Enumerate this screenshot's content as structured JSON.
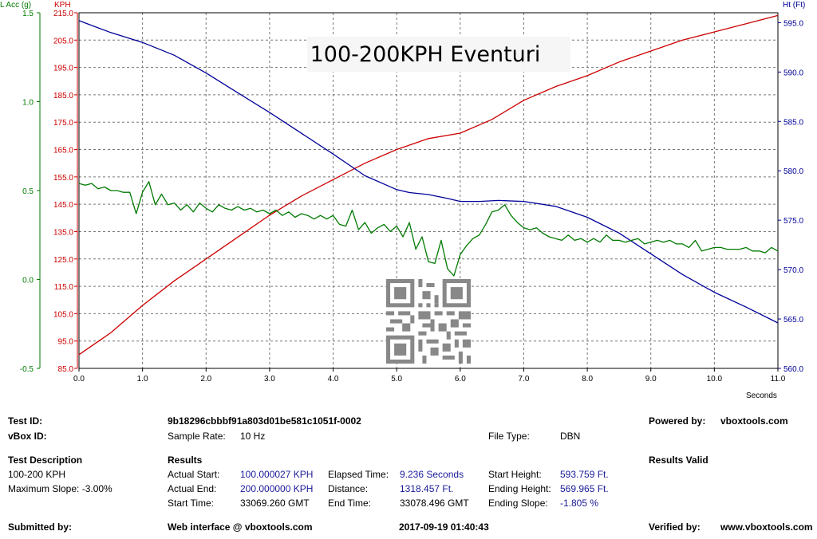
{
  "chart_data": {
    "type": "line",
    "title": "100-200KPH Eventuri",
    "x_unit": "Seconds",
    "xlim": [
      0,
      11
    ],
    "x_ticks": [
      "0.0",
      "1.0",
      "2.0",
      "3.0",
      "4.0",
      "5.0",
      "6.0",
      "7.0",
      "8.0",
      "9.0",
      "10.0",
      "11.0"
    ],
    "axes": {
      "lacc": {
        "label": "L Acc (g)",
        "lim": [
          -0.5,
          1.5
        ],
        "ticks": [
          "1.5",
          "1.0",
          "0.5",
          "0.0",
          "-0.5"
        ],
        "color": "#007a00"
      },
      "kph": {
        "label": "KPH",
        "lim": [
          85,
          215
        ],
        "ticks": [
          "215.0",
          "205.0",
          "195.0",
          "185.0",
          "175.0",
          "165.0",
          "155.0",
          "145.0",
          "135.0",
          "125.0",
          "115.0",
          "105.0",
          "95.0",
          "85.0"
        ],
        "color": "#cc0000"
      },
      "ht": {
        "label": "Ht (Ft)",
        "lim": [
          560,
          596
        ],
        "ticks": [
          "595.0",
          "590.0",
          "585.0",
          "580.0",
          "575.0",
          "570.0",
          "565.0",
          "560.0"
        ],
        "color": "#000099"
      }
    },
    "grid": true,
    "series": [
      {
        "name": "KPH",
        "axis": "kph",
        "color": "#cc0000",
        "x": [
          0,
          0.5,
          0.8,
          1.0,
          1.5,
          2.0,
          2.5,
          3.0,
          3.5,
          4.0,
          4.5,
          5.0,
          5.5,
          6.0,
          6.5,
          7.0,
          7.5,
          8.0,
          8.5,
          9.0,
          9.5,
          10.0,
          10.5,
          11.0
        ],
        "y": [
          90,
          98,
          104,
          108,
          117,
          125,
          133,
          141,
          148,
          154,
          160,
          165,
          169,
          171,
          176,
          183,
          188,
          192,
          197,
          201,
          205,
          208,
          211,
          214
        ]
      },
      {
        "name": "Ht (Ft)",
        "axis": "ht",
        "color": "#000099",
        "x": [
          0,
          0.5,
          1.0,
          1.5,
          2.0,
          2.5,
          3.0,
          3.5,
          4.0,
          4.5,
          5.0,
          5.2,
          5.5,
          5.8,
          6.0,
          6.3,
          6.6,
          7.0,
          7.5,
          8.0,
          8.5,
          9.0,
          9.5,
          10.0,
          10.5,
          11.0
        ],
        "y": [
          595.2,
          594.0,
          593.0,
          591.7,
          589.9,
          587.9,
          585.9,
          583.8,
          581.7,
          579.5,
          578.1,
          577.8,
          577.6,
          577.2,
          576.9,
          576.9,
          577.0,
          576.9,
          576.4,
          575.3,
          573.7,
          571.6,
          569.5,
          567.7,
          566.2,
          564.6
        ]
      },
      {
        "name": "L Acc (g)",
        "axis": "lacc",
        "color": "#007a00",
        "x": [
          0,
          0.1,
          0.2,
          0.3,
          0.4,
          0.5,
          0.6,
          0.7,
          0.8,
          0.9,
          1.0,
          1.1,
          1.2,
          1.3,
          1.4,
          1.5,
          1.6,
          1.7,
          1.8,
          1.9,
          2.0,
          2.1,
          2.2,
          2.3,
          2.4,
          2.5,
          2.6,
          2.7,
          2.8,
          2.9,
          3.0,
          3.1,
          3.2,
          3.3,
          3.4,
          3.5,
          3.6,
          3.7,
          3.8,
          3.9,
          4.0,
          4.1,
          4.2,
          4.3,
          4.4,
          4.5,
          4.6,
          4.7,
          4.8,
          4.9,
          5.0,
          5.1,
          5.2,
          5.3,
          5.4,
          5.5,
          5.6,
          5.7,
          5.8,
          5.9,
          6.0,
          6.1,
          6.2,
          6.3,
          6.4,
          6.5,
          6.6,
          6.7,
          6.8,
          6.9,
          7.0,
          7.1,
          7.2,
          7.3,
          7.4,
          7.5,
          7.6,
          7.7,
          7.8,
          7.9,
          8.0,
          8.1,
          8.2,
          8.3,
          8.4,
          8.5,
          8.6,
          8.7,
          8.8,
          8.9,
          9.0,
          9.1,
          9.2,
          9.3,
          9.4,
          9.5,
          9.6,
          9.7,
          9.8,
          9.9,
          10.0,
          10.1,
          10.2,
          10.3,
          10.4,
          10.5,
          10.6,
          10.7,
          10.8,
          10.9,
          11.0
        ],
        "y": [
          0.54,
          0.53,
          0.54,
          0.51,
          0.52,
          0.5,
          0.5,
          0.49,
          0.49,
          0.37,
          0.49,
          0.55,
          0.42,
          0.48,
          0.42,
          0.43,
          0.39,
          0.42,
          0.38,
          0.43,
          0.4,
          0.38,
          0.42,
          0.4,
          0.39,
          0.41,
          0.39,
          0.4,
          0.38,
          0.39,
          0.37,
          0.39,
          0.36,
          0.38,
          0.35,
          0.37,
          0.36,
          0.34,
          0.36,
          0.34,
          0.36,
          0.31,
          0.3,
          0.39,
          0.28,
          0.32,
          0.26,
          0.29,
          0.31,
          0.27,
          0.3,
          0.24,
          0.32,
          0.17,
          0.24,
          0.1,
          0.09,
          0.22,
          0.06,
          0.02,
          0.14,
          0.19,
          0.23,
          0.25,
          0.31,
          0.38,
          0.39,
          0.42,
          0.36,
          0.32,
          0.29,
          0.28,
          0.29,
          0.26,
          0.24,
          0.23,
          0.22,
          0.25,
          0.22,
          0.23,
          0.21,
          0.23,
          0.21,
          0.25,
          0.22,
          0.22,
          0.21,
          0.22,
          0.23,
          0.2,
          0.21,
          0.22,
          0.21,
          0.22,
          0.2,
          0.2,
          0.18,
          0.22,
          0.16,
          0.17,
          0.18,
          0.18,
          0.17,
          0.17,
          0.17,
          0.18,
          0.16,
          0.16,
          0.15,
          0.18,
          0.16
        ]
      }
    ]
  },
  "info": {
    "test_id_label": "Test ID:",
    "test_id_value": "9b18296cbbbf91a803d01be581c1051f-0002",
    "powered_by_label": "Powered by:",
    "powered_by_value": "vboxtools.com",
    "vbox_id_label": "vBox ID:",
    "sample_rate_label": "Sample Rate:",
    "sample_rate_value": "10 Hz",
    "file_type_label": "File Type:",
    "file_type_value": "DBN",
    "test_description_label": "Test Description",
    "test_description_1": "100-200 KPH",
    "test_description_2": "Maximum Slope:  -3.00%",
    "results_label": "Results",
    "results_valid_label": "Results Valid",
    "actual_start_label": "Actual Start:",
    "actual_start_value": "100.000027 KPH",
    "actual_end_label": "Actual End:",
    "actual_end_value": "200.000000 KPH",
    "start_time_label": "Start Time:",
    "start_time_value": "33069.260 GMT",
    "elapsed_time_label": "Elapsed Time:",
    "elapsed_time_value": "9.236 Seconds",
    "distance_label": "Distance:",
    "distance_value": "1318.457 Ft.",
    "end_time_label": "End Time:",
    "end_time_value": "33078.496 GMT",
    "start_height_label": "Start Height:",
    "start_height_value": "593.759 Ft.",
    "ending_height_label": "Ending Height:",
    "ending_height_value": "569.965 Ft.",
    "ending_slope_label": "Ending Slope:",
    "ending_slope_value": "-1.805 %",
    "submitted_by_label": "Submitted by:",
    "web_interface": "Web interface @ vboxtools.com",
    "timestamp": "2017-09-19 01:40:43",
    "verified_by_label": "Verified by:",
    "verified_by_value": "www.vboxtools.com"
  },
  "colors": {
    "kph": "#cc0000",
    "height": "#000099",
    "lacc": "#007a00",
    "value_blue": "#1a1a9a"
  }
}
